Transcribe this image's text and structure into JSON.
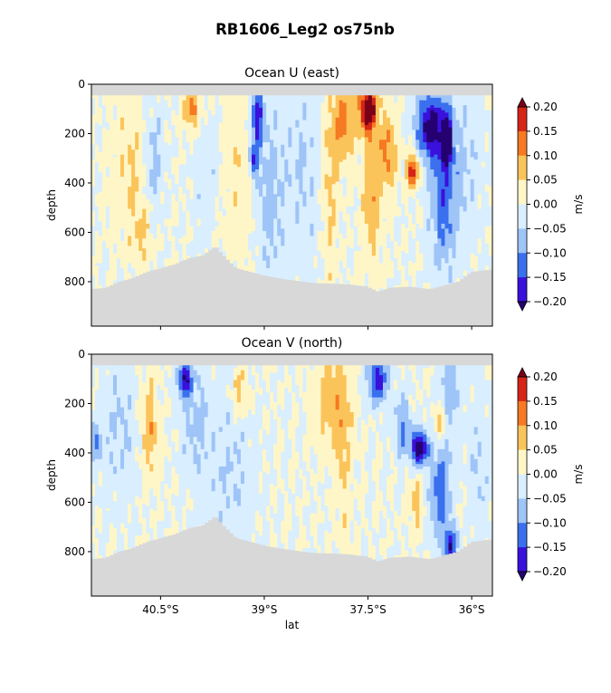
{
  "suptitle": "RB1606_Leg2 os75nb",
  "colors": {
    "levels": [
      -0.2,
      -0.15,
      -0.1,
      -0.05,
      0.0,
      0.05,
      0.1,
      0.15,
      0.2
    ],
    "band_colors": [
      "#3a10dc",
      "#3a70ee",
      "#9ec4f8",
      "#d9eefe",
      "#fff6c8",
      "#fbc45a",
      "#f57a22",
      "#d62417"
    ],
    "under_color": "#250070",
    "over_color": "#7a0018",
    "mask_color": "#d8d8d8"
  },
  "chart_data": [
    {
      "type": "heatmap",
      "title": "Ocean U (east)",
      "xlabel": "",
      "ylabel": "depth",
      "colorbar_label": "m/s",
      "xlim": [
        -41.5,
        -35.7
      ],
      "ylim": [
        980,
        0
      ],
      "x_ticks": [
        -40.5,
        -39.0,
        -37.5,
        -36.0
      ],
      "x_tick_labels": [],
      "y_ticks": [
        0,
        200,
        400,
        600,
        800
      ],
      "y_tick_labels": [
        "0",
        "200",
        "400",
        "600",
        "800"
      ],
      "cbar_ticks": [
        "0.20",
        "0.15",
        "0.10",
        "0.05",
        "0.00",
        "−0.05",
        "−0.10",
        "−0.15",
        "−0.20"
      ],
      "surface_depth": 45,
      "bottom_profile": [
        [
          -41.5,
          830
        ],
        [
          -41.3,
          825
        ],
        [
          -41.1,
          800
        ],
        [
          -40.9,
          785
        ],
        [
          -40.7,
          760
        ],
        [
          -40.5,
          745
        ],
        [
          -40.3,
          730
        ],
        [
          -40.1,
          705
        ],
        [
          -39.9,
          695
        ],
        [
          -39.7,
          655
        ],
        [
          -39.6,
          690
        ],
        [
          -39.4,
          745
        ],
        [
          -39.2,
          760
        ],
        [
          -39.0,
          775
        ],
        [
          -38.7,
          790
        ],
        [
          -38.3,
          805
        ],
        [
          -37.8,
          810
        ],
        [
          -37.5,
          820
        ],
        [
          -37.35,
          840
        ],
        [
          -37.2,
          825
        ],
        [
          -36.9,
          820
        ],
        [
          -36.6,
          830
        ],
        [
          -36.4,
          815
        ],
        [
          -36.2,
          800
        ],
        [
          -36.0,
          760
        ],
        [
          -35.7,
          750
        ]
      ],
      "features": [
        {
          "lat": -40.95,
          "depth": 350,
          "wlat": 0.25,
          "wdep": 300,
          "amp": 0.055
        },
        {
          "lat": -40.75,
          "depth": 600,
          "wlat": 0.12,
          "wdep": 120,
          "amp": 0.055
        },
        {
          "lat": -40.6,
          "depth": 300,
          "wlat": 0.15,
          "wdep": 200,
          "amp": -0.07
        },
        {
          "lat": -40.05,
          "depth": 100,
          "wlat": 0.12,
          "wdep": 80,
          "amp": 0.13
        },
        {
          "lat": -39.8,
          "depth": 380,
          "wlat": 0.25,
          "wdep": 300,
          "amp": -0.055
        },
        {
          "lat": -39.45,
          "depth": 350,
          "wlat": 0.45,
          "wdep": 400,
          "amp": 0.045
        },
        {
          "lat": -39.1,
          "depth": 130,
          "wlat": 0.09,
          "wdep": 110,
          "amp": -0.19
        },
        {
          "lat": -39.15,
          "depth": 310,
          "wlat": 0.07,
          "wdep": 80,
          "amp": -0.14
        },
        {
          "lat": -38.95,
          "depth": 430,
          "wlat": 0.2,
          "wdep": 350,
          "amp": -0.08
        },
        {
          "lat": -38.45,
          "depth": 350,
          "wlat": 0.35,
          "wdep": 450,
          "amp": -0.05
        },
        {
          "lat": -38.05,
          "depth": 430,
          "wlat": 0.12,
          "wdep": 400,
          "amp": 0.075
        },
        {
          "lat": -37.85,
          "depth": 150,
          "wlat": 0.15,
          "wdep": 150,
          "amp": 0.13
        },
        {
          "lat": -37.5,
          "depth": 100,
          "wlat": 0.13,
          "wdep": 90,
          "amp": 0.24
        },
        {
          "lat": -37.45,
          "depth": 420,
          "wlat": 0.14,
          "wdep": 320,
          "amp": 0.09
        },
        {
          "lat": -37.2,
          "depth": 270,
          "wlat": 0.12,
          "wdep": 140,
          "amp": 0.12
        },
        {
          "lat": -36.85,
          "depth": 350,
          "wlat": 0.09,
          "wdep": 70,
          "amp": 0.18
        },
        {
          "lat": -36.6,
          "depth": 170,
          "wlat": 0.2,
          "wdep": 130,
          "amp": -0.22
        },
        {
          "lat": -36.35,
          "depth": 220,
          "wlat": 0.08,
          "wdep": 120,
          "amp": -0.18
        },
        {
          "lat": -36.4,
          "depth": 450,
          "wlat": 0.2,
          "wdep": 300,
          "amp": -0.13
        },
        {
          "lat": -36.05,
          "depth": 300,
          "wlat": 0.2,
          "wdep": 350,
          "amp": -0.05
        }
      ]
    },
    {
      "type": "heatmap",
      "title": "Ocean V (north)",
      "xlabel": "lat",
      "ylabel": "depth",
      "colorbar_label": "m/s",
      "xlim": [
        -41.5,
        -35.7
      ],
      "ylim": [
        980,
        0
      ],
      "x_ticks": [
        -40.5,
        -39.0,
        -37.5,
        -36.0
      ],
      "x_tick_labels": [
        "40.5°S",
        "39°S",
        "37.5°S",
        "36°S"
      ],
      "y_ticks": [
        0,
        200,
        400,
        600,
        800
      ],
      "y_tick_labels": [
        "0",
        "200",
        "400",
        "600",
        "800"
      ],
      "cbar_ticks": [
        "0.20",
        "0.15",
        "0.10",
        "0.05",
        "0.00",
        "−0.05",
        "−0.10",
        "−0.15",
        "−0.20"
      ],
      "surface_depth": 45,
      "bottom_profile": [
        [
          -41.5,
          830
        ],
        [
          -41.3,
          825
        ],
        [
          -41.1,
          800
        ],
        [
          -40.9,
          785
        ],
        [
          -40.7,
          760
        ],
        [
          -40.5,
          745
        ],
        [
          -40.3,
          730
        ],
        [
          -40.1,
          705
        ],
        [
          -39.9,
          695
        ],
        [
          -39.7,
          655
        ],
        [
          -39.6,
          690
        ],
        [
          -39.4,
          745
        ],
        [
          -39.2,
          760
        ],
        [
          -39.0,
          775
        ],
        [
          -38.7,
          790
        ],
        [
          -38.3,
          805
        ],
        [
          -37.8,
          810
        ],
        [
          -37.5,
          820
        ],
        [
          -37.35,
          840
        ],
        [
          -37.2,
          825
        ],
        [
          -36.9,
          820
        ],
        [
          -36.6,
          830
        ],
        [
          -36.4,
          815
        ],
        [
          -36.2,
          800
        ],
        [
          -36.0,
          760
        ],
        [
          -35.7,
          750
        ]
      ],
      "features": [
        {
          "lat": -41.45,
          "depth": 350,
          "wlat": 0.1,
          "wdep": 80,
          "amp": -0.1
        },
        {
          "lat": -41.1,
          "depth": 300,
          "wlat": 0.25,
          "wdep": 300,
          "amp": -0.055
        },
        {
          "lat": -40.65,
          "depth": 300,
          "wlat": 0.12,
          "wdep": 200,
          "amp": 0.09
        },
        {
          "lat": -40.15,
          "depth": 100,
          "wlat": 0.09,
          "wdep": 70,
          "amp": -0.2
        },
        {
          "lat": -40.0,
          "depth": 250,
          "wlat": 0.2,
          "wdep": 250,
          "amp": -0.06
        },
        {
          "lat": -39.35,
          "depth": 150,
          "wlat": 0.12,
          "wdep": 100,
          "amp": 0.09
        },
        {
          "lat": -39.5,
          "depth": 450,
          "wlat": 0.35,
          "wdep": 350,
          "amp": -0.05
        },
        {
          "lat": -38.0,
          "depth": 180,
          "wlat": 0.25,
          "wdep": 200,
          "amp": 0.08
        },
        {
          "lat": -37.85,
          "depth": 450,
          "wlat": 0.12,
          "wdep": 300,
          "amp": 0.055
        },
        {
          "lat": -37.35,
          "depth": 100,
          "wlat": 0.15,
          "wdep": 100,
          "amp": -0.17
        },
        {
          "lat": -37.0,
          "depth": 300,
          "wlat": 0.12,
          "wdep": 120,
          "amp": -0.11
        },
        {
          "lat": -36.75,
          "depth": 380,
          "wlat": 0.12,
          "wdep": 70,
          "amp": -0.25
        },
        {
          "lat": -36.45,
          "depth": 280,
          "wlat": 0.08,
          "wdep": 60,
          "amp": 0.11
        },
        {
          "lat": -36.45,
          "depth": 560,
          "wlat": 0.15,
          "wdep": 180,
          "amp": -0.14
        },
        {
          "lat": -36.3,
          "depth": 780,
          "wlat": 0.1,
          "wdep": 80,
          "amp": -0.17
        },
        {
          "lat": -36.8,
          "depth": 600,
          "wlat": 0.1,
          "wdep": 120,
          "amp": 0.065
        },
        {
          "lat": -36.3,
          "depth": 150,
          "wlat": 0.15,
          "wdep": 200,
          "amp": -0.08
        },
        {
          "lat": -35.9,
          "depth": 450,
          "wlat": 0.15,
          "wdep": 300,
          "amp": -0.05
        }
      ]
    }
  ]
}
